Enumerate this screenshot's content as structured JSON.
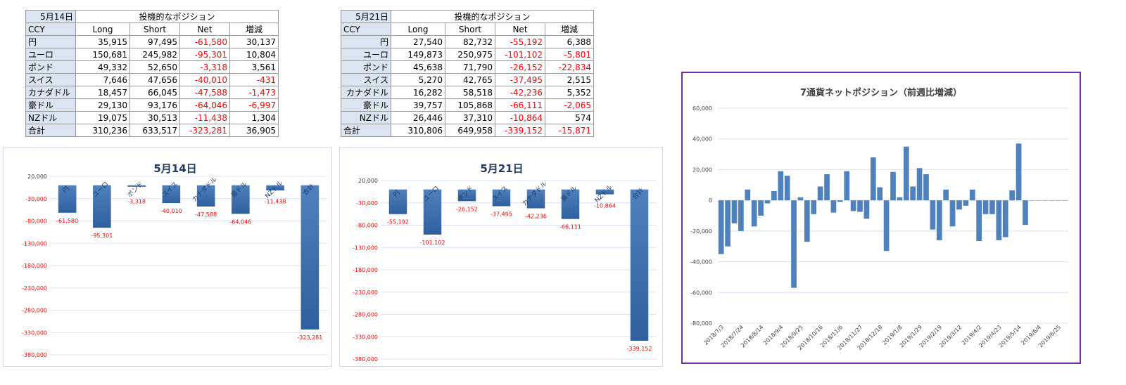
{
  "tables": [
    {
      "date": "5月14日",
      "header": "投機的なポジション",
      "columns": [
        "CCY",
        "Long",
        "Short",
        "Net",
        "増減"
      ],
      "align_left_labels": true,
      "rows": [
        {
          "ccy": "円",
          "long": "35,915",
          "short": "97,495",
          "net": "-61,580",
          "chg": "30,137"
        },
        {
          "ccy": "ユーロ",
          "long": "150,681",
          "short": "245,982",
          "net": "-95,301",
          "chg": "10,804"
        },
        {
          "ccy": "ポンド",
          "long": "49,332",
          "short": "52,650",
          "net": "-3,318",
          "chg": "3,561"
        },
        {
          "ccy": "スイス",
          "long": "7,646",
          "short": "47,656",
          "net": "-40,010",
          "chg": "-431"
        },
        {
          "ccy": "カナダドル",
          "long": "18,457",
          "short": "66,045",
          "net": "-47,588",
          "chg": "-1,473"
        },
        {
          "ccy": "豪ドル",
          "long": "29,130",
          "short": "93,176",
          "net": "-64,046",
          "chg": "-6,997"
        },
        {
          "ccy": "NZドル",
          "long": "19,075",
          "short": "30,513",
          "net": "-11,438",
          "chg": "1,304"
        },
        {
          "ccy": "合計",
          "long": "310,236",
          "short": "633,517",
          "net": "-323,281",
          "chg": "36,905"
        }
      ]
    },
    {
      "date": "5月21日",
      "header": "投機的なポジション",
      "columns": [
        "CCY",
        "Long",
        "Short",
        "Net",
        "増減"
      ],
      "align_left_labels": false,
      "rows": [
        {
          "ccy": "円",
          "long": "27,540",
          "short": "82,732",
          "net": "-55,192",
          "chg": "6,388"
        },
        {
          "ccy": "ユーロ",
          "long": "149,873",
          "short": "250,975",
          "net": "-101,102",
          "chg": "-5,801"
        },
        {
          "ccy": "ポンド",
          "long": "45,638",
          "short": "71,790",
          "net": "-26,152",
          "chg": "-22,834"
        },
        {
          "ccy": "スイス",
          "long": "5,270",
          "short": "42,765",
          "net": "-37,495",
          "chg": "2,515"
        },
        {
          "ccy": "カナダドル",
          "long": "16,282",
          "short": "58,518",
          "net": "-42,236",
          "chg": "5,352"
        },
        {
          "ccy": "豪ドル",
          "long": "39,757",
          "short": "105,868",
          "net": "-66,111",
          "chg": "-2,065"
        },
        {
          "ccy": "NZドル",
          "long": "26,446",
          "short": "37,310",
          "net": "-10,864",
          "chg": "574"
        },
        {
          "ccy": "合計",
          "long": "310,806",
          "short": "649,958",
          "net": "-339,152",
          "chg": "-15,871"
        }
      ]
    }
  ],
  "colors": {
    "bar": "#3f73b8",
    "bar_light": "#4f81bd",
    "negative_text": "#ff0000",
    "title": "#1f3864",
    "grid": "#d9e1f2",
    "frame": "#7030a0"
  },
  "chart_data": [
    {
      "type": "bar",
      "title": "5月14日",
      "categories": [
        "円",
        "ユーロ",
        "ポンド",
        "スイス",
        "カナダドル",
        "豪ドル",
        "NZドル",
        "合計"
      ],
      "values": [
        -61580,
        -95301,
        -3318,
        -40010,
        -47588,
        -64046,
        -11438,
        -323281
      ],
      "data_labels": [
        "-61,580",
        "-95,301",
        "-3,318",
        "-40,010",
        "-47,588",
        "-64,046",
        "-11,438",
        "-323,281"
      ],
      "ylim": [
        -380000,
        20000
      ],
      "yticks": [
        20000,
        -30000,
        -80000,
        -130000,
        -180000,
        -230000,
        -280000,
        -330000,
        -380000
      ],
      "ytick_labels": [
        "20,000",
        "-30,000",
        "-80,000",
        "-130,000",
        "-180,000",
        "-230,000",
        "-280,000",
        "-330,000",
        "-380,000"
      ],
      "grid": true,
      "legend": false
    },
    {
      "type": "bar",
      "title": "5月21日",
      "categories": [
        "円",
        "ユーロ",
        "ポンド",
        "スイス",
        "カナダドル",
        "豪ドル",
        "NZドル",
        "合計"
      ],
      "values": [
        -55192,
        -101102,
        -26152,
        -37495,
        -42236,
        -66111,
        -10864,
        -339152
      ],
      "data_labels": [
        "-55,192",
        "-101,102",
        "-26,152",
        "-37,495",
        "-42,236",
        "-66,111",
        "-10,864",
        "-339,152"
      ],
      "ylim": [
        -380000,
        20000
      ],
      "yticks": [
        20000,
        -30000,
        -80000,
        -130000,
        -180000,
        -230000,
        -280000,
        -330000,
        -380000
      ],
      "ytick_labels": [
        "20,000",
        "-30,000",
        "-80,000",
        "-130,000",
        "-180,000",
        "-230,000",
        "-280,000",
        "-330,000",
        "-380,000"
      ],
      "grid": true,
      "legend": false
    },
    {
      "type": "bar",
      "title": "7通貨ネットポジション（前週比増減）",
      "ylim": [
        -80000,
        60000
      ],
      "yticks": [
        60000,
        40000,
        20000,
        0,
        -20000,
        -40000,
        -60000,
        -80000
      ],
      "ytick_labels": [
        "60,000",
        "40,000",
        "20,000",
        "0",
        "-20,000",
        "-40,000",
        "-60,000",
        "-80,000"
      ],
      "x_tick_labels": [
        "2018/7/3",
        "2018/7/24",
        "2018/8/14",
        "2018/9/4",
        "2018/9/25",
        "2018/10/16",
        "2018/11/6",
        "2018/11/27",
        "2018/12/18",
        "2019/1/8",
        "2019/1/29",
        "2019/2/19",
        "2019/3/12",
        "2019/4/2",
        "2019/4/23",
        "2019/5/14",
        "2019/6/4",
        "2019/6/25"
      ],
      "values": [
        -35000,
        -30000,
        -15000,
        -20000,
        7000,
        -17000,
        -10000,
        -2000,
        6000,
        19000,
        16000,
        -57000,
        2000,
        -27000,
        -9000,
        9000,
        17000,
        -8000,
        -1000,
        19000,
        -7000,
        -7500,
        -12000,
        28000,
        8500,
        -33000,
        18500,
        2000,
        35000,
        9000,
        21000,
        17000,
        -19000,
        -26000,
        7000,
        -17000,
        -6000,
        -3500,
        7000,
        -26500,
        -9000,
        -9000,
        -26000,
        -24000,
        6500,
        37000,
        -16000,
        0,
        0,
        0,
        0,
        0,
        0
      ],
      "grid": true,
      "legend": false
    }
  ]
}
